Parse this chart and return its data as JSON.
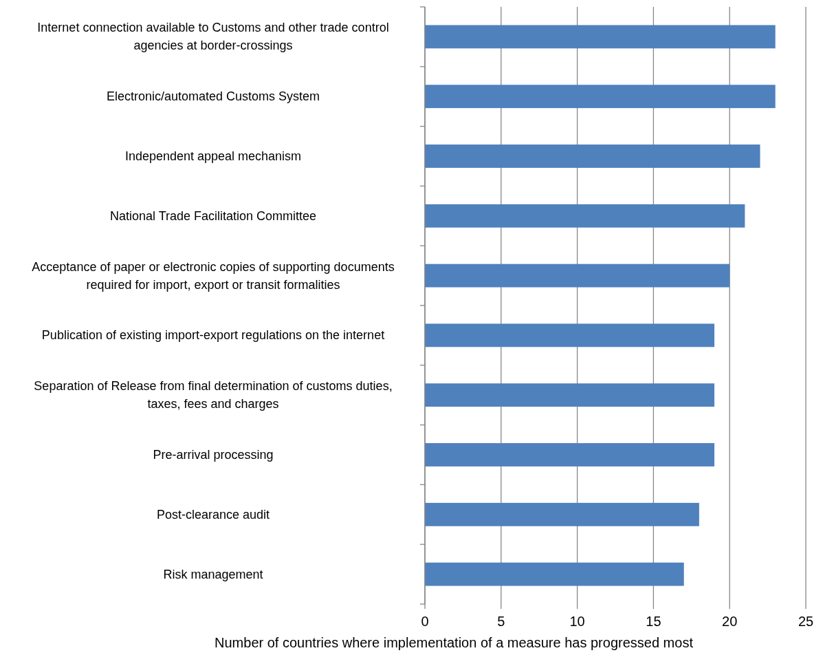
{
  "chart_data": {
    "type": "bar",
    "orientation": "horizontal",
    "xlabel": "Number of countries where implementation of a measure has progressed most",
    "categories": [
      "Internet connection available to Customs and other trade control agencies at border-crossings",
      "Electronic/automated Customs System",
      "Independent appeal mechanism",
      "National Trade Facilitation Committee",
      "Acceptance of paper or electronic copies of supporting documents required for import, export or transit formalities",
      "Publication of existing import-export regulations on the internet",
      "Separation of Release from final determination of customs duties, taxes, fees and charges",
      "Pre-arrival processing",
      "Post-clearance audit",
      "Risk management"
    ],
    "values": [
      23,
      23,
      22,
      21,
      20,
      19,
      19,
      19,
      18,
      17
    ],
    "color": "#4f81bd",
    "xlim": [
      0,
      25
    ],
    "xticks": [
      0,
      5,
      10,
      15,
      20,
      25
    ],
    "grid": "x"
  }
}
